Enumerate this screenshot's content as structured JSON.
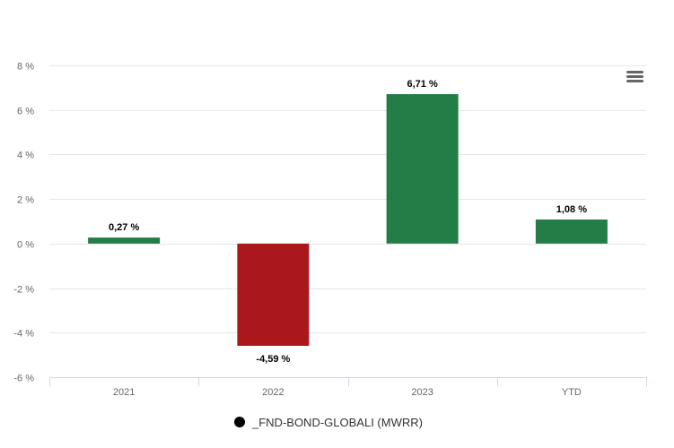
{
  "chart_data": {
    "type": "bar",
    "categories": [
      "2021",
      "2022",
      "2023",
      "YTD"
    ],
    "series": [
      {
        "name": "_FND-BOND-GLOBALI (MWRR)",
        "values": [
          0.27,
          -4.59,
          6.71,
          1.08
        ],
        "data_labels": [
          "0,27 %",
          "-4,59 %",
          "6,71 %",
          "1,08 %"
        ]
      }
    ],
    "ylim": [
      -6,
      8
    ],
    "yticks": [
      8,
      6,
      4,
      2,
      0,
      -2,
      -4,
      -6
    ],
    "ytick_labels": [
      "8 %",
      "6 %",
      "4 %",
      "2 %",
      "0 %",
      "-2 %",
      "-4 %",
      "-6 %"
    ],
    "grid": true,
    "legend_position": "bottom-center",
    "colors": {
      "positive": "#237d46",
      "negative": "#ab181b",
      "grid": "#e6e6e6",
      "axis": "#ccd6eb",
      "text": "#666666",
      "label": "#000000"
    }
  },
  "toolbar": {
    "menu_icon": "hamburger-menu-icon"
  }
}
